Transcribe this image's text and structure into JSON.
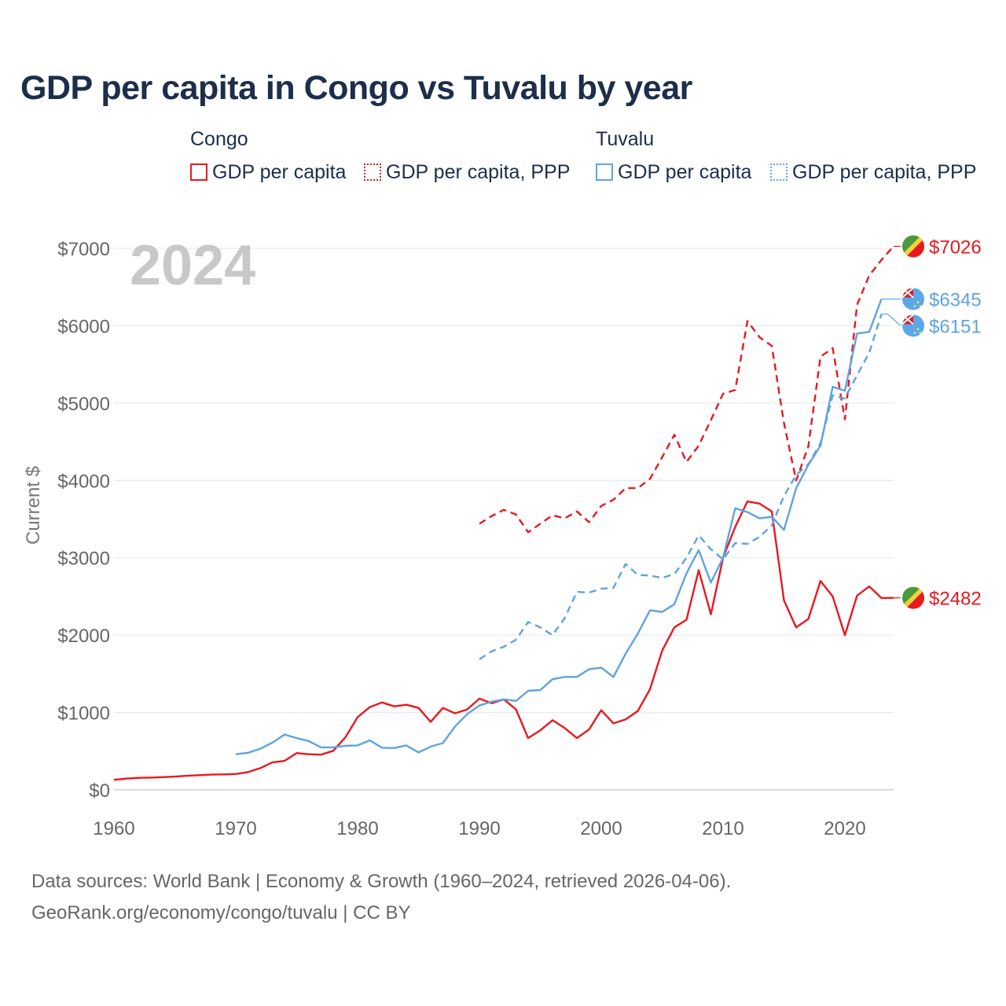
{
  "title": "GDP per capita in Congo vs Tuvalu by year",
  "year_watermark": "2024",
  "legend": {
    "groups": [
      {
        "name": "Congo",
        "items": [
          {
            "label": "GDP per capita",
            "color": "#e8181f",
            "style": "solid"
          },
          {
            "label": "GDP per capita, PPP",
            "color": "#e8181f",
            "style": "dotted"
          }
        ]
      },
      {
        "name": "Tuvalu",
        "items": [
          {
            "label": "GDP per capita",
            "color": "#5fa3e0",
            "style": "solid"
          },
          {
            "label": "GDP per capita, PPP",
            "color": "#5fa3e0",
            "style": "dotted"
          }
        ]
      }
    ]
  },
  "footer": {
    "line1": "Data sources: World Bank | Economy & Growth (1960–2024, retrieved 2026-04-06).",
    "line2": "GeoRank.org/economy/congo/tuvalu | CC BY"
  },
  "chart_data": {
    "type": "line",
    "title": "GDP per capita in Congo vs Tuvalu by year",
    "xlabel": "",
    "ylabel": "Current $",
    "xlim": [
      1960,
      2024
    ],
    "ylim": [
      0,
      7000
    ],
    "x_ticks": [
      1960,
      1970,
      1980,
      1990,
      2000,
      2010,
      2020
    ],
    "y_ticks": [
      0,
      1000,
      2000,
      3000,
      4000,
      5000,
      6000,
      7000
    ],
    "y_tick_labels": [
      "$0",
      "$1000",
      "$2000",
      "$3000",
      "$4000",
      "$5000",
      "$6000",
      "$7000"
    ],
    "grid": true,
    "series": [
      {
        "name": "Congo GDP per capita",
        "country": "Congo",
        "color": "#e8181f",
        "dash": "solid",
        "end_label": "$2482",
        "x": [
          1960,
          1961,
          1962,
          1963,
          1964,
          1965,
          1966,
          1967,
          1968,
          1969,
          1970,
          1971,
          1972,
          1973,
          1974,
          1975,
          1976,
          1977,
          1978,
          1979,
          1980,
          1981,
          1982,
          1983,
          1984,
          1985,
          1986,
          1987,
          1988,
          1989,
          1990,
          1991,
          1992,
          1993,
          1994,
          1995,
          1996,
          1997,
          1998,
          1999,
          2000,
          2001,
          2002,
          2003,
          2004,
          2005,
          2006,
          2007,
          2008,
          2009,
          2010,
          2011,
          2012,
          2013,
          2014,
          2015,
          2016,
          2017,
          2018,
          2019,
          2020,
          2021,
          2022,
          2023,
          2024
        ],
        "y": [
          130,
          145,
          155,
          158,
          165,
          172,
          182,
          190,
          197,
          200,
          205,
          230,
          280,
          355,
          375,
          475,
          460,
          455,
          505,
          680,
          940,
          1070,
          1130,
          1080,
          1100,
          1060,
          880,
          1060,
          990,
          1040,
          1180,
          1120,
          1170,
          1040,
          670,
          770,
          900,
          800,
          670,
          780,
          1030,
          860,
          910,
          1020,
          1300,
          1800,
          2100,
          2200,
          2840,
          2270,
          3000,
          3400,
          3730,
          3700,
          3600,
          2450,
          2100,
          2210,
          2700,
          2500,
          2000,
          2510,
          2630,
          2480,
          2482
        ]
      },
      {
        "name": "Congo GDP per capita, PPP",
        "country": "Congo",
        "color": "#e8181f",
        "dash": "dashed",
        "end_label": "$7026",
        "x": [
          1990,
          1991,
          1992,
          1993,
          1994,
          1995,
          1996,
          1997,
          1998,
          1999,
          2000,
          2001,
          2002,
          2003,
          2004,
          2005,
          2006,
          2007,
          2008,
          2009,
          2010,
          2011,
          2012,
          2013,
          2014,
          2015,
          2016,
          2017,
          2018,
          2019,
          2020,
          2021,
          2022,
          2023,
          2024
        ],
        "y": [
          3440,
          3540,
          3620,
          3560,
          3330,
          3440,
          3550,
          3510,
          3600,
          3460,
          3670,
          3750,
          3900,
          3900,
          4020,
          4300,
          4590,
          4240,
          4450,
          4780,
          5120,
          5170,
          6060,
          5850,
          5740,
          4740,
          4000,
          4440,
          5600,
          5710,
          4790,
          6270,
          6650,
          6850,
          7026
        ]
      },
      {
        "name": "Tuvalu GDP per capita",
        "country": "Tuvalu",
        "color": "#5fa3e0",
        "dash": "solid",
        "end_label": "$6345",
        "x": [
          1970,
          1971,
          1972,
          1973,
          1974,
          1975,
          1976,
          1977,
          1978,
          1979,
          1980,
          1981,
          1982,
          1983,
          1984,
          1985,
          1986,
          1987,
          1988,
          1989,
          1990,
          1991,
          1992,
          1993,
          1994,
          1995,
          1996,
          1997,
          1998,
          1999,
          2000,
          2001,
          2002,
          2003,
          2004,
          2005,
          2006,
          2007,
          2008,
          2009,
          2010,
          2011,
          2012,
          2013,
          2014,
          2015,
          2016,
          2017,
          2018,
          2019,
          2020,
          2021,
          2022,
          2023
        ],
        "y": [
          460,
          480,
          530,
          610,
          715,
          670,
          630,
          550,
          550,
          570,
          575,
          640,
          545,
          540,
          575,
          485,
          560,
          605,
          820,
          980,
          1090,
          1140,
          1170,
          1150,
          1280,
          1290,
          1430,
          1460,
          1460,
          1560,
          1580,
          1460,
          1760,
          2020,
          2320,
          2300,
          2400,
          2800,
          3100,
          2680,
          3000,
          3640,
          3590,
          3510,
          3530,
          3360,
          3900,
          4200,
          4450,
          5210,
          5160,
          5900,
          5920,
          6345
        ]
      },
      {
        "name": "Tuvalu GDP per capita, PPP",
        "country": "Tuvalu",
        "color": "#5fa3e0",
        "dash": "dashed",
        "end_label": "$6151",
        "x": [
          1990,
          1991,
          1992,
          1993,
          1994,
          1995,
          1996,
          1997,
          1998,
          1999,
          2000,
          2001,
          2002,
          2003,
          2004,
          2005,
          2006,
          2007,
          2008,
          2009,
          2010,
          2011,
          2012,
          2013,
          2014,
          2015,
          2016,
          2017,
          2018,
          2019,
          2020,
          2021,
          2022,
          2023
        ],
        "y": [
          1690,
          1790,
          1850,
          1940,
          2170,
          2100,
          2000,
          2220,
          2560,
          2550,
          2600,
          2610,
          2920,
          2780,
          2770,
          2740,
          2790,
          3000,
          3290,
          3110,
          2980,
          3190,
          3180,
          3270,
          3420,
          3800,
          4070,
          4210,
          4480,
          5100,
          5060,
          5360,
          5650,
          6151
        ]
      }
    ]
  }
}
